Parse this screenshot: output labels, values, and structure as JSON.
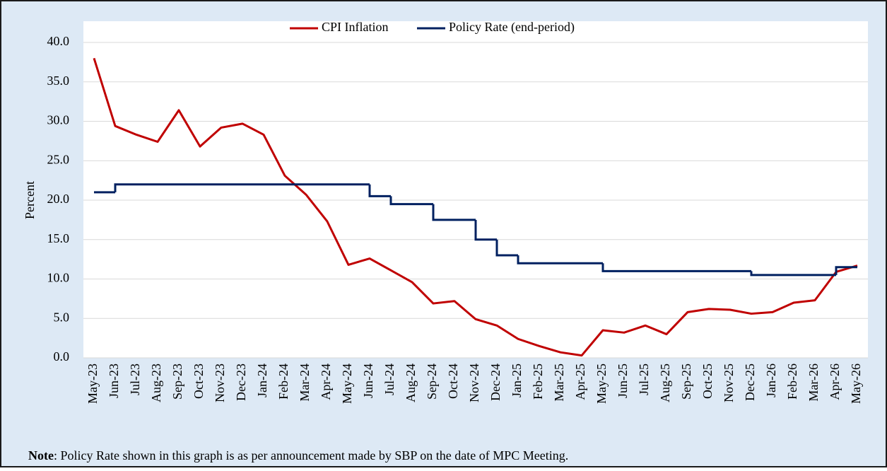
{
  "chart_data": {
    "type": "line",
    "categories": [
      "May-23",
      "Jun-23",
      "Jul-23",
      "Aug-23",
      "Sep-23",
      "Oct-23",
      "Nov-23",
      "Dec-23",
      "Jan-24",
      "Feb-24",
      "Mar-24",
      "Apr-24",
      "May-24",
      "Jun-24",
      "Jul-24",
      "Aug-24",
      "Sep-24",
      "Oct-24",
      "Nov-24",
      "Dec-24",
      "Jan-25",
      "Feb-25",
      "Mar-25",
      "Apr-25",
      "May-25",
      "Jun-25",
      "Jul-25",
      "Aug-25",
      "Sep-25",
      "Oct-25",
      "Nov-25",
      "Dec-25",
      "Jan-26",
      "Feb-26",
      "Mar-26",
      "Apr-26",
      "May-26"
    ],
    "series": [
      {
        "name": "CPI Inflation",
        "color": "#c00000",
        "step": false,
        "values": [
          38.0,
          29.4,
          28.3,
          27.4,
          31.4,
          26.8,
          29.2,
          29.7,
          28.3,
          23.1,
          20.7,
          17.3,
          11.8,
          12.6,
          11.1,
          9.6,
          6.9,
          7.2,
          4.9,
          4.1,
          2.4,
          1.5,
          0.7,
          0.3,
          3.5,
          3.2,
          4.1,
          3.0,
          5.8,
          6.2,
          6.1,
          5.6,
          5.8,
          7.0,
          7.3,
          10.9,
          11.7
        ]
      },
      {
        "name": "Policy Rate (end-period)",
        "color": "#002060",
        "step": true,
        "values": [
          21,
          22,
          22,
          22,
          22,
          22,
          22,
          22,
          22,
          22,
          22,
          22,
          22,
          20.5,
          19.5,
          19.5,
          17.5,
          17.5,
          15,
          13,
          12,
          12,
          12,
          12,
          11,
          11,
          11,
          11,
          11,
          11,
          11,
          10.5,
          10.5,
          10.5,
          10.5,
          11.5,
          11.5
        ]
      }
    ],
    "y_label": "Percent",
    "ylim": [
      0,
      40
    ],
    "yticks": [
      {
        "value": 0,
        "label": "0.0"
      },
      {
        "value": 5,
        "label": "5.0"
      },
      {
        "value": 10,
        "label": "10.0"
      },
      {
        "value": 15,
        "label": "15.0"
      },
      {
        "value": 20,
        "label": "20.0"
      },
      {
        "value": 25,
        "label": "25.0"
      },
      {
        "value": 30,
        "label": "30.0"
      },
      {
        "value": 35,
        "label": "35.0"
      },
      {
        "value": 40,
        "label": "40.0"
      }
    ],
    "grid": true,
    "legend": "top",
    "note_label": "Note",
    "note_text": ": Policy Rate shown in this graph is as per announcement made by SBP on the date of MPC Meeting."
  }
}
